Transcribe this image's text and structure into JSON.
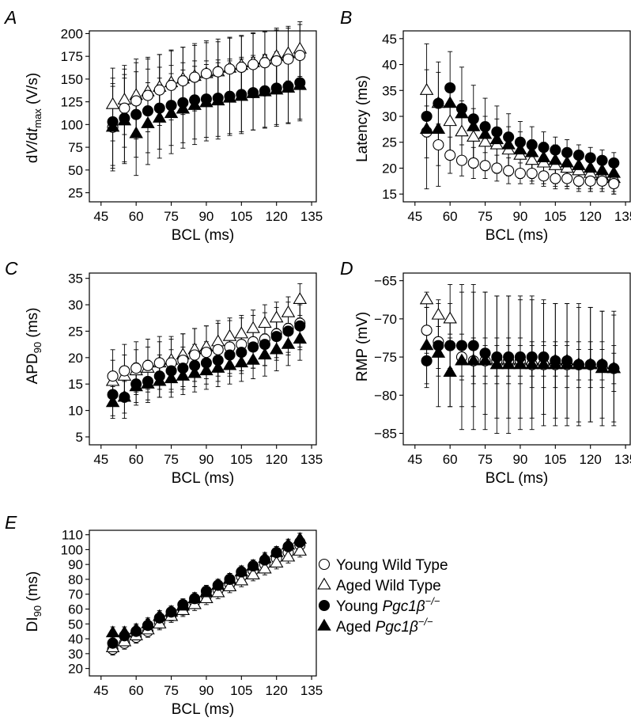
{
  "chart_data": [
    {
      "panel": "A",
      "type": "scatter",
      "xlabel": "BCL (ms)",
      "ylabel": "dV/dt_max (V/s)",
      "xlim": [
        40,
        137
      ],
      "ylim": [
        15,
        203
      ],
      "xticks": [
        45,
        60,
        75,
        90,
        105,
        120,
        135
      ],
      "yticks": [
        25,
        50,
        75,
        100,
        125,
        150,
        175,
        200
      ],
      "x": [
        50,
        55,
        60,
        65,
        70,
        75,
        80,
        85,
        90,
        95,
        100,
        105,
        110,
        115,
        120,
        125,
        130
      ],
      "series": [
        {
          "name": "Aged Wild Type",
          "marker": "triangle-open",
          "values": [
            122,
            127,
            132,
            136,
            141,
            146,
            150,
            153,
            156,
            158,
            162,
            165,
            168,
            171,
            175,
            178,
            183
          ],
          "errors": [
            40,
            38,
            40,
            38,
            36,
            36,
            35,
            34,
            34,
            33,
            33,
            32,
            32,
            31,
            31,
            30,
            30
          ]
        },
        {
          "name": "Young Wild Type",
          "marker": "circle-open",
          "values": [
            97,
            118,
            126,
            132,
            138,
            143,
            148,
            152,
            156,
            158,
            161,
            163,
            166,
            168,
            170,
            172,
            176
          ],
          "errors": [
            45,
            43,
            42,
            40,
            39,
            38,
            37,
            37,
            36,
            36,
            35,
            35,
            35,
            34,
            34,
            34,
            34
          ]
        },
        {
          "name": "Young Pgc1β−/−",
          "marker": "circle-filled",
          "values": [
            103,
            107,
            111,
            115,
            118,
            121,
            124,
            127,
            128,
            129,
            131,
            133,
            135,
            137,
            140,
            142,
            146
          ],
          "errors": [
            48,
            48,
            47,
            46,
            45,
            44,
            44,
            43,
            42,
            42,
            41,
            41,
            41,
            40,
            40,
            40,
            40
          ]
        },
        {
          "name": "Aged Pgc1β−/−",
          "marker": "triangle-filled",
          "values": [
            97,
            104,
            90,
            101,
            107,
            112,
            117,
            121,
            124,
            126,
            129,
            131,
            134,
            136,
            138,
            140,
            143
          ],
          "errors": [
            48,
            47,
            46,
            45,
            44,
            44,
            43,
            43,
            42,
            42,
            41,
            41,
            40,
            40,
            40,
            39,
            39
          ]
        }
      ]
    },
    {
      "panel": "B",
      "type": "scatter",
      "xlabel": "BCL (ms)",
      "ylabel": "Latency (ms)",
      "xlim": [
        40,
        137
      ],
      "ylim": [
        13.5,
        46.5
      ],
      "xticks": [
        45,
        60,
        75,
        90,
        105,
        120,
        135
      ],
      "yticks": [
        15,
        20,
        25,
        30,
        35,
        40,
        45
      ],
      "x": [
        50,
        55,
        60,
        65,
        70,
        75,
        80,
        85,
        90,
        95,
        100,
        105,
        110,
        115,
        120,
        125,
        130
      ],
      "series": [
        {
          "name": "Aged Wild Type",
          "marker": "triangle-open",
          "values": [
            35,
            32.5,
            29,
            27,
            26,
            25,
            24.5,
            23.5,
            22.5,
            21.5,
            21,
            20.5,
            20,
            19.5,
            19,
            18.5,
            18
          ],
          "errors": [
            9,
            8,
            7,
            6,
            5.5,
            5,
            5,
            4.5,
            4.5,
            4,
            4,
            4,
            3.5,
            3.5,
            3.5,
            3,
            3
          ]
        },
        {
          "name": "Young Wild Type",
          "marker": "circle-open",
          "values": [
            27,
            24.5,
            22.5,
            21.5,
            21,
            20.5,
            20,
            19.5,
            19,
            19,
            18.5,
            18,
            18,
            17.5,
            17.5,
            17.5,
            17
          ],
          "errors": [
            5,
            4,
            3.5,
            3,
            3,
            2.5,
            2.5,
            2.5,
            2,
            2,
            2,
            2,
            2,
            2,
            2,
            1.5,
            1.5
          ]
        },
        {
          "name": "Young Pgc1β−/−",
          "marker": "circle-filled",
          "values": [
            30,
            32.5,
            35.5,
            31.5,
            29.5,
            28,
            27,
            26,
            25,
            24.5,
            24,
            23.5,
            23,
            22.5,
            22,
            21.5,
            21
          ]
        },
        {
          "name": "Aged Pgc1β−/−",
          "marker": "triangle-filled",
          "values": [
            27.5,
            27.5,
            32.5,
            30.5,
            28,
            26.5,
            25.5,
            24.5,
            23.5,
            23,
            22,
            21.5,
            21,
            20.5,
            20,
            19.5,
            19
          ],
          "errors": [
            11.5,
            11,
            10,
            9,
            8,
            7,
            6.5,
            6,
            5.5,
            5,
            5,
            4.5,
            4.5,
            4,
            4,
            4,
            4
          ]
        }
      ]
    },
    {
      "panel": "C",
      "type": "scatter",
      "xlabel": "BCL (ms)",
      "ylabel": "APD90 (ms)",
      "xlim": [
        40,
        137
      ],
      "ylim": [
        3.5,
        36
      ],
      "xticks": [
        45,
        60,
        75,
        90,
        105,
        120,
        135
      ],
      "yticks": [
        5,
        10,
        15,
        20,
        25,
        30,
        35
      ],
      "x": [
        50,
        55,
        60,
        65,
        70,
        75,
        80,
        85,
        90,
        95,
        100,
        105,
        110,
        115,
        120,
        125,
        130
      ],
      "series": [
        {
          "name": "Aged Wild Type",
          "marker": "triangle-open",
          "values": [
            15.5,
            16.5,
            17.5,
            18,
            19,
            19.5,
            20.5,
            21.5,
            22,
            23,
            24,
            24.5,
            25.5,
            26.5,
            27.5,
            28.5,
            31
          ],
          "errors": [
            4,
            4,
            4,
            4,
            4,
            4,
            4,
            4,
            4,
            4,
            3.5,
            3.5,
            3.5,
            3.5,
            3,
            3,
            3
          ]
        },
        {
          "name": "Young Wild Type",
          "marker": "circle-open",
          "values": [
            16.5,
            17.5,
            18,
            18.5,
            19,
            19,
            19.5,
            20.5,
            21,
            21.5,
            22,
            22.5,
            23,
            23.5,
            24.5,
            25.5,
            26.5
          ],
          "errors": [
            5,
            5,
            5,
            5,
            5,
            5,
            5,
            5,
            5,
            5,
            5,
            5,
            5,
            5,
            5,
            5,
            5
          ]
        },
        {
          "name": "Young Pgc1β−/−",
          "marker": "circle-filled",
          "values": [
            13,
            12.5,
            15,
            15.5,
            16.5,
            17.5,
            18,
            18.5,
            19,
            19.5,
            20.5,
            21,
            22,
            22.5,
            24,
            25,
            26
          ],
          "errors": [
            4,
            4,
            4,
            4,
            4,
            4,
            4,
            4,
            4,
            4,
            4,
            4,
            4,
            4,
            4,
            4,
            4
          ]
        },
        {
          "name": "Aged Pgc1β−/−",
          "marker": "triangle-filled",
          "values": [
            11.5,
            12.5,
            14.5,
            15,
            15.5,
            16,
            16.5,
            17,
            17.5,
            18,
            18.5,
            19,
            19.5,
            20.5,
            21.5,
            22.5,
            23.5
          ],
          "errors": [
            3,
            3,
            3,
            3,
            3,
            3.5,
            3.5,
            3.5,
            3.5,
            3.5,
            3.5,
            3.5,
            3.5,
            4,
            4,
            4,
            4
          ]
        }
      ]
    },
    {
      "panel": "D",
      "type": "scatter",
      "xlabel": "BCL (ms)",
      "ylabel": "RMP (mV)",
      "xlim": [
        40,
        137
      ],
      "ylim": [
        -86.5,
        -64
      ],
      "xticks": [
        45,
        60,
        75,
        90,
        105,
        120,
        135
      ],
      "yticks": [
        -85,
        -80,
        -75,
        -70,
        -65
      ],
      "x": [
        50,
        55,
        60,
        65,
        70,
        75,
        80,
        85,
        90,
        95,
        100,
        105,
        110,
        115,
        120,
        125,
        130
      ],
      "series": [
        {
          "name": "Aged Wild Type",
          "marker": "triangle-open",
          "values": [
            -67.5,
            -69.5,
            -70,
            -75.5,
            -75.5,
            -75.5,
            -75.5,
            -75.5,
            -75.5,
            -75.5,
            -75.5,
            -75.5,
            -75.5,
            -76,
            -76,
            -76,
            -76.5
          ],
          "errors": [
            1,
            1.5,
            2,
            2,
            2,
            2,
            2,
            2,
            2,
            2,
            2,
            2,
            2,
            2,
            2,
            2,
            2
          ]
        },
        {
          "name": "Young Wild Type",
          "marker": "circle-open",
          "values": [
            -71.5,
            -73,
            -73.5,
            -75,
            -75.5,
            -75.5,
            -75.5,
            -75.5,
            -75.5,
            -76,
            -76,
            -76,
            -76,
            -76,
            -76,
            -76,
            -76.5
          ],
          "errors": [
            3,
            3.5,
            3,
            3,
            3,
            3,
            3,
            3,
            3,
            3,
            3,
            3,
            3,
            3,
            3,
            3,
            3
          ]
        },
        {
          "name": "Young Pgc1β−/−",
          "marker": "circle-filled",
          "values": [
            -75.5,
            -73.5,
            -73.5,
            -73.5,
            -73.5,
            -74.5,
            -75,
            -75,
            -75,
            -75,
            -75,
            -75.5,
            -75.5,
            -76,
            -76,
            -76,
            -76.5
          ],
          "errors": [
            3.5,
            4,
            8,
            8,
            8,
            8,
            8,
            8,
            8,
            8,
            7.5,
            7.5,
            7.5,
            7.5,
            7.5,
            7,
            7
          ]
        },
        {
          "name": "Aged Pgc1β−/−",
          "marker": "triangle-filled",
          "values": [
            -73.5,
            -74.5,
            -77,
            -75.5,
            -75.5,
            -75.5,
            -76,
            -76,
            -76,
            -76,
            -76,
            -76,
            -76,
            -76,
            -76,
            -76.5,
            -76.5
          ],
          "errors": [
            5,
            7,
            4.5,
            9,
            9,
            9,
            9,
            9,
            8.5,
            8.5,
            8,
            8,
            8,
            8,
            7.5,
            7.5,
            7.5
          ]
        }
      ]
    },
    {
      "panel": "E",
      "type": "scatter",
      "xlabel": "BCL (ms)",
      "ylabel": "DI90 (ms)",
      "xlim": [
        40,
        137
      ],
      "ylim": [
        15,
        113
      ],
      "xticks": [
        45,
        60,
        75,
        90,
        105,
        120,
        135
      ],
      "yticks": [
        20,
        30,
        40,
        50,
        60,
        70,
        80,
        90,
        100,
        110
      ],
      "x": [
        50,
        55,
        60,
        65,
        70,
        75,
        80,
        85,
        90,
        95,
        100,
        105,
        110,
        115,
        120,
        125,
        130
      ],
      "series": [
        {
          "name": "Young Wild Type",
          "marker": "circle-open",
          "values": [
            33,
            37,
            41,
            45,
            51,
            56,
            60,
            65,
            69,
            73,
            77,
            82,
            86,
            90,
            94,
            98,
            103
          ],
          "errors": [
            4,
            4,
            4,
            4,
            4,
            4,
            4,
            4,
            4,
            4,
            4,
            4,
            4,
            4,
            4,
            4,
            4
          ]
        },
        {
          "name": "Aged Wild Type",
          "marker": "triangle-open",
          "values": [
            34,
            38,
            42,
            46,
            50,
            55,
            59,
            63,
            67,
            71,
            75,
            79,
            83,
            87,
            91,
            95,
            99
          ],
          "errors": [
            4,
            4,
            4,
            4,
            4,
            4,
            4,
            4,
            4,
            4,
            4,
            4,
            4,
            4,
            4,
            4,
            4
          ]
        },
        {
          "name": "Young Pgc1β−/−",
          "marker": "circle-filled",
          "values": [
            37,
            42,
            45,
            49,
            54,
            58,
            63,
            67,
            72,
            76,
            80,
            85,
            89,
            93,
            98,
            102,
            105
          ],
          "errors": [
            4,
            4,
            4,
            4,
            4,
            4,
            4,
            4,
            4,
            4,
            4,
            4,
            4,
            4,
            4,
            4,
            4
          ]
        },
        {
          "name": "Aged Pgc1β−/−",
          "marker": "triangle-filled",
          "values": [
            44,
            44,
            46,
            50,
            55,
            58,
            62,
            67,
            71,
            76,
            80,
            85,
            89,
            94,
            98,
            103,
            107
          ],
          "errors": [
            4,
            4,
            4,
            4,
            4,
            4,
            4,
            4,
            4,
            4,
            4,
            4,
            4,
            4,
            4,
            4,
            4
          ]
        }
      ]
    }
  ],
  "legend": [
    {
      "marker": "circle-open",
      "label": "Young Wild Type"
    },
    {
      "marker": "triangle-open",
      "label": "Aged Wild Type"
    },
    {
      "marker": "circle-filled",
      "label": "Young ",
      "italic": "Pgc1β",
      "sup": "−/−"
    },
    {
      "marker": "triangle-filled",
      "label": "Aged ",
      "italic": "Pgc1β",
      "sup": "−/−"
    }
  ]
}
